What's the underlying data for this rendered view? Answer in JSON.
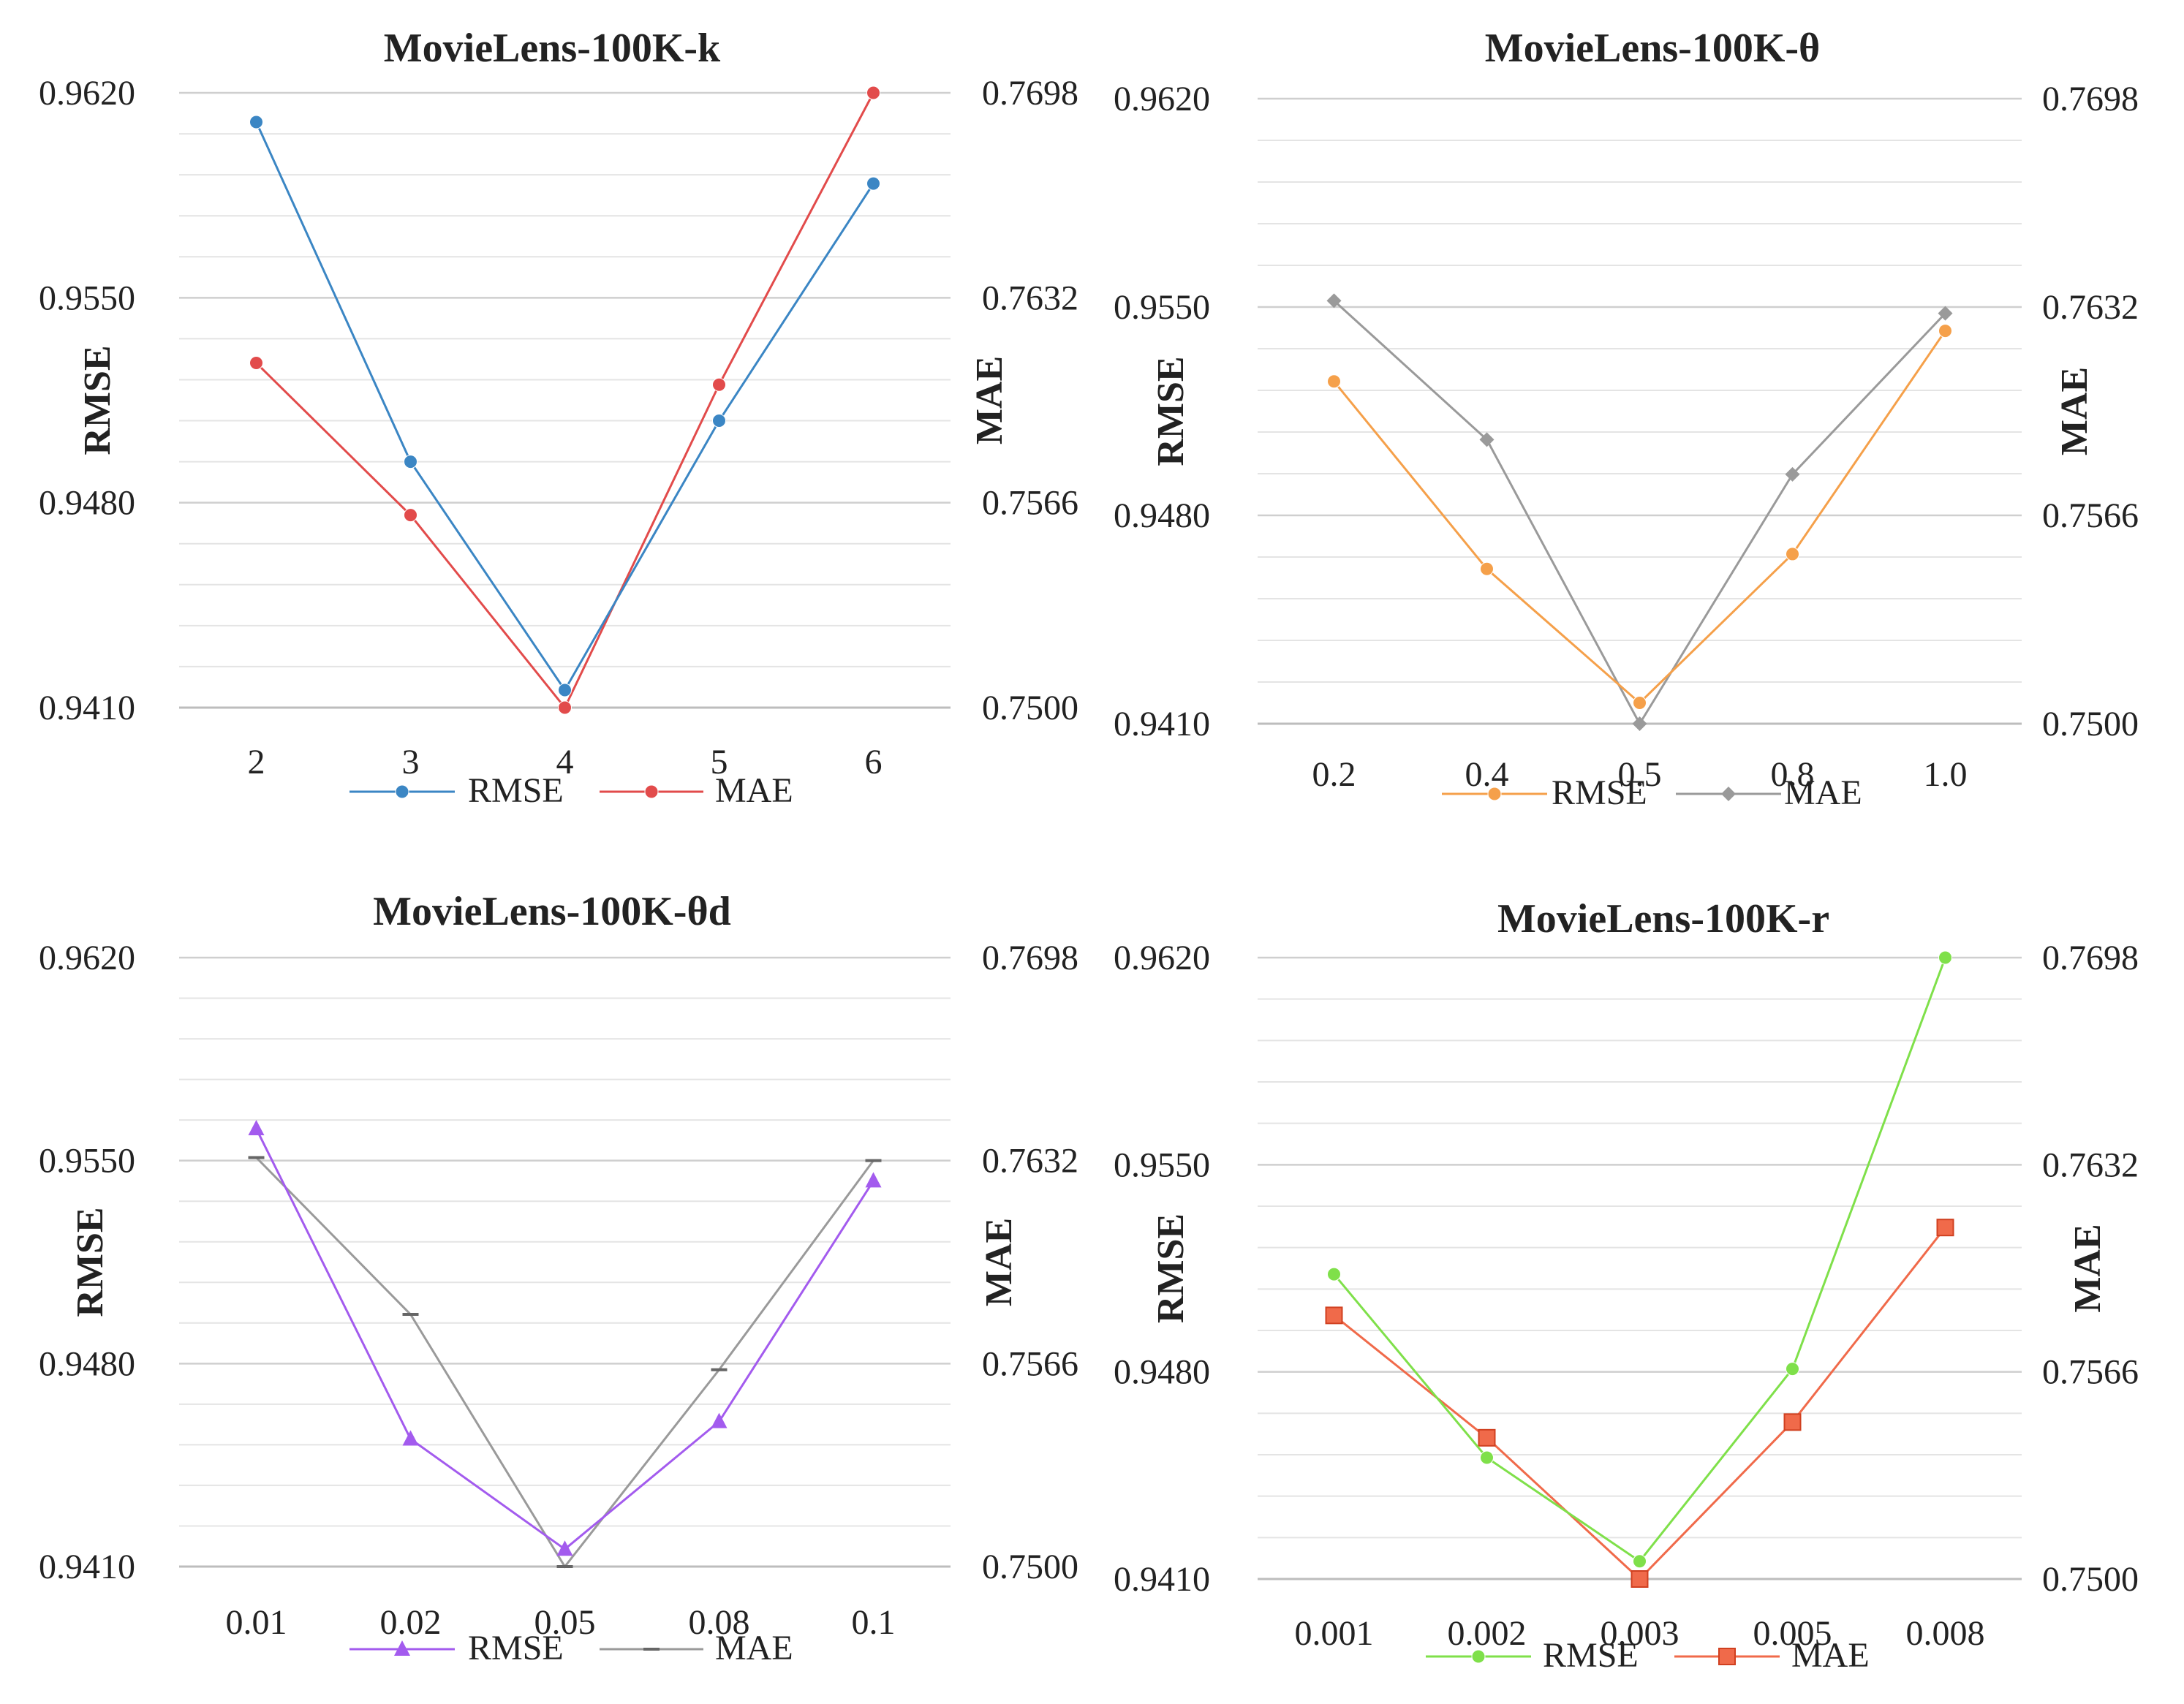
{
  "chart_data": [
    {
      "type": "line",
      "title": "MovieLens-100K-k",
      "categories": [
        "2",
        "3",
        "4",
        "5",
        "6"
      ],
      "ylabel": "RMSE",
      "y2label": "MAE",
      "ylim": [
        0.941,
        0.962
      ],
      "y2lim": [
        0.75,
        0.7698
      ],
      "yticks": [
        "0.9410",
        "0.9480",
        "0.9550",
        "0.9620"
      ],
      "y2ticks": [
        "0.7500",
        "0.7566",
        "0.7632",
        "0.7698"
      ],
      "series": [
        {
          "name": "RMSE",
          "axis": "left",
          "color": "#3B86C4",
          "marker": "circle",
          "values": [
            0.961,
            0.9494,
            0.9416,
            0.9508,
            0.9589
          ]
        },
        {
          "name": "MAE",
          "axis": "right",
          "color": "#E24B4B",
          "marker": "circle",
          "values": [
            0.7611,
            0.7562,
            0.75,
            0.7604,
            0.7698
          ]
        }
      ],
      "legend": "bottom"
    },
    {
      "type": "line",
      "title": "MovieLens-100K-θ",
      "categories": [
        "0.2",
        "0.4",
        "0.5",
        "0.8",
        "1.0"
      ],
      "ylabel": "RMSE",
      "y2label": "MAE",
      "ylim": [
        0.941,
        0.962
      ],
      "y2lim": [
        0.75,
        0.7698
      ],
      "yticks": [
        "0.9410",
        "0.9480",
        "0.9550",
        "0.9620"
      ],
      "y2ticks": [
        "0.7500",
        "0.7566",
        "0.7632",
        "0.7698"
      ],
      "series": [
        {
          "name": "RMSE",
          "axis": "left",
          "color": "#F5A04A",
          "marker": "circle",
          "values": [
            0.9525,
            0.9462,
            0.9417,
            0.9467,
            0.9542
          ]
        },
        {
          "name": "MAE",
          "axis": "right",
          "color": "#9A9A9A",
          "marker": "diamond",
          "values": [
            0.7634,
            0.759,
            0.75,
            0.7579,
            0.763
          ]
        }
      ],
      "legend": "bottom"
    },
    {
      "type": "line",
      "title": "MovieLens-100K-θd",
      "categories": [
        "0.01",
        "0.02",
        "0.05",
        "0.08",
        "0.1"
      ],
      "ylabel": "RMSE",
      "y2label": "MAE",
      "ylim": [
        0.941,
        0.962
      ],
      "y2lim": [
        0.75,
        0.7698
      ],
      "yticks": [
        "0.9410",
        "0.9480",
        "0.9550",
        "0.9620"
      ],
      "y2ticks": [
        "0.7500",
        "0.7566",
        "0.7632",
        "0.7698"
      ],
      "series": [
        {
          "name": "RMSE",
          "axis": "left",
          "color": "#A35BEE",
          "marker": "triangle",
          "values": [
            0.9561,
            0.9454,
            0.9416,
            0.946,
            0.9543
          ]
        },
        {
          "name": "MAE",
          "axis": "right",
          "color": "#9A9A9A",
          "marker": "dash",
          "values": [
            0.7633,
            0.7582,
            0.75,
            0.7564,
            0.7632
          ]
        }
      ],
      "legend": "bottom"
    },
    {
      "type": "line",
      "title": "MovieLens-100K-r",
      "categories": [
        "0.001",
        "0.002",
        "0.003",
        "0.005",
        "0.008"
      ],
      "ylabel": "RMSE",
      "y2label": "MAE",
      "ylim": [
        0.941,
        0.962
      ],
      "y2lim": [
        0.75,
        0.7698
      ],
      "yticks": [
        "0.9410",
        "0.9480",
        "0.9550",
        "0.9620"
      ],
      "y2ticks": [
        "0.7500",
        "0.7566",
        "0.7632",
        "0.7698"
      ],
      "series": [
        {
          "name": "RMSE",
          "axis": "left",
          "color": "#7FE04A",
          "marker": "circle",
          "values": [
            0.9513,
            0.9451,
            0.9416,
            0.9481,
            0.962
          ]
        },
        {
          "name": "MAE",
          "axis": "right",
          "color": "#F06A4A",
          "marker": "square",
          "values": [
            0.7584,
            0.7545,
            0.75,
            0.755,
            0.7612
          ]
        }
      ],
      "legend": "bottom"
    }
  ]
}
